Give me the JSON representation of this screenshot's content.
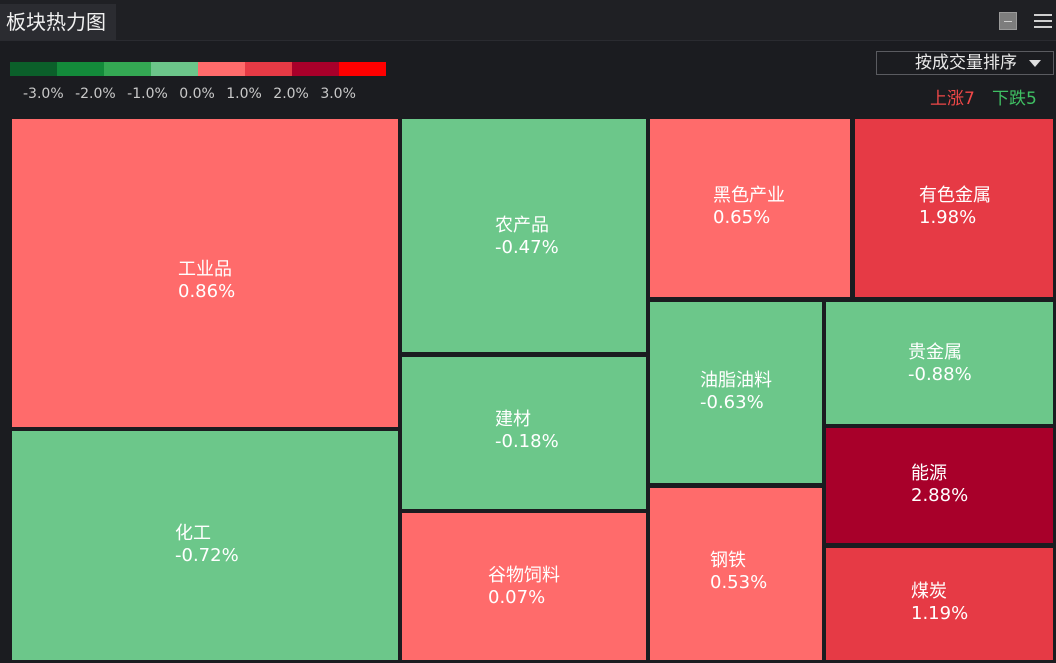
{
  "window": {
    "title": "板块热力图",
    "minimize_icon": "minimize-icon",
    "menu_icon": "hamburger-menu-icon"
  },
  "legend": {
    "colors": [
      "#0b5f2a",
      "#138a3a",
      "#34a853",
      "#6cc58a",
      "#ff6b6b",
      "#e63a45",
      "#a8002a",
      "#ff0000"
    ],
    "labels": [
      "-3.0%",
      "-2.0%",
      "-1.0%",
      "0.0%",
      "1.0%",
      "2.0%",
      "3.0%"
    ]
  },
  "sort": {
    "selected": "按成交量排序",
    "icon": "chevron-down-icon"
  },
  "summary": {
    "up": "上涨7",
    "down": "下跌5",
    "up_color": "#f04848",
    "down_color": "#3fbf63"
  },
  "sectors": [
    {
      "name": "工业品",
      "change": "0.86%",
      "color": "#ff6b6b"
    },
    {
      "name": "化工",
      "change": "-0.72%",
      "color": "#6cc78a"
    },
    {
      "name": "农产品",
      "change": "-0.47%",
      "color": "#6cc78a"
    },
    {
      "name": "建材",
      "change": "-0.18%",
      "color": "#6cc78a"
    },
    {
      "name": "谷物饲料",
      "change": "0.07%",
      "color": "#ff6b6b"
    },
    {
      "name": "黑色产业",
      "change": "0.65%",
      "color": "#ff6b6b"
    },
    {
      "name": "有色金属",
      "change": "1.98%",
      "color": "#e63a45"
    },
    {
      "name": "油脂油料",
      "change": "-0.63%",
      "color": "#6cc78a"
    },
    {
      "name": "贵金属",
      "change": "-0.88%",
      "color": "#6cc78a"
    },
    {
      "name": "钢铁",
      "change": "0.53%",
      "color": "#ff6b6b"
    },
    {
      "name": "能源",
      "change": "2.88%",
      "color": "#a8002a"
    },
    {
      "name": "煤炭",
      "change": "1.19%",
      "color": "#e63a45"
    }
  ]
}
